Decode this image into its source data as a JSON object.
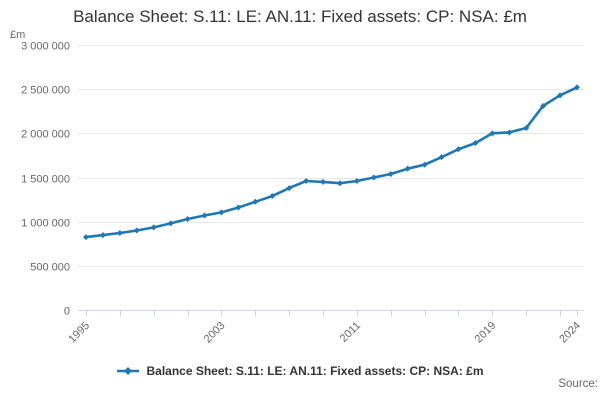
{
  "title": "Balance Sheet: S.11: LE: AN.11: Fixed assets: CP: NSA: £m",
  "legend": {
    "label": "Balance Sheet: S.11: LE: AN.11: Fixed assets: CP: NSA: £m"
  },
  "source": "Source:",
  "colors": {
    "line": "#1f77b4",
    "grid": "#e6e6e6",
    "axis": "#ccd6eb",
    "tick_label": "#666666",
    "title": "#333333"
  },
  "chart_data": {
    "type": "line",
    "title": "Balance Sheet: S.11: LE: AN.11: Fixed assets: CP: NSA: £m",
    "xlabel": "",
    "ylabel": "£m",
    "unit_label": "£m",
    "ylim": [
      0,
      3000000
    ],
    "grid": true,
    "legend_position": "bottom",
    "x": [
      1995,
      1996,
      1997,
      1998,
      1999,
      2000,
      2001,
      2002,
      2003,
      2004,
      2005,
      2006,
      2007,
      2008,
      2009,
      2010,
      2011,
      2012,
      2013,
      2014,
      2015,
      2016,
      2017,
      2018,
      2019,
      2020,
      2021,
      2022,
      2023,
      2024
    ],
    "values": [
      825000,
      848000,
      872000,
      900000,
      935000,
      980000,
      1030000,
      1070000,
      1105000,
      1160000,
      1225000,
      1290000,
      1380000,
      1460000,
      1450000,
      1435000,
      1460000,
      1500000,
      1540000,
      1600000,
      1645000,
      1730000,
      1820000,
      1890000,
      2000000,
      2010000,
      2060000,
      2310000,
      2430000,
      2520000
    ],
    "y_ticks": [
      {
        "value": 0,
        "label": "0"
      },
      {
        "value": 500000,
        "label": "500 000"
      },
      {
        "value": 1000000,
        "label": "1 000 000"
      },
      {
        "value": 1500000,
        "label": "1 500 000"
      },
      {
        "value": 2000000,
        "label": "2 000 000"
      },
      {
        "value": 2500000,
        "label": "2 500 000"
      },
      {
        "value": 3000000,
        "label": "3 000 000"
      }
    ],
    "x_ticks": [
      1995,
      1997,
      1999,
      2001,
      2003,
      2005,
      2007,
      2009,
      2011,
      2013,
      2015,
      2017,
      2019,
      2021,
      2023,
      2024
    ],
    "x_tick_labels": [
      1995,
      2003,
      2011,
      2019,
      2024
    ]
  }
}
